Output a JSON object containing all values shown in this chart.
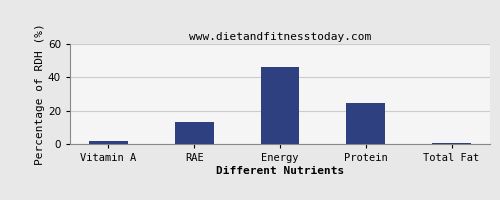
{
  "subtitle": "www.dietandfitnesstoday.com",
  "xlabel": "Different Nutrients",
  "ylabel": "Percentage of RDH (%)",
  "categories": [
    "Vitamin A",
    "RAE",
    "Energy",
    "Protein",
    "Total Fat"
  ],
  "values": [
    2.0,
    13.0,
    46.5,
    24.5,
    0.4
  ],
  "bar_color": "#2e4080",
  "ylim": [
    0,
    60
  ],
  "yticks": [
    0,
    20,
    40,
    60
  ],
  "background_color": "#e8e8e8",
  "plot_bg_color": "#f5f5f5",
  "grid_color": "#cccccc",
  "title_fontsize": 9,
  "subtitle_fontsize": 8,
  "axis_label_fontsize": 8,
  "tick_fontsize": 7.5,
  "bar_width": 0.45
}
